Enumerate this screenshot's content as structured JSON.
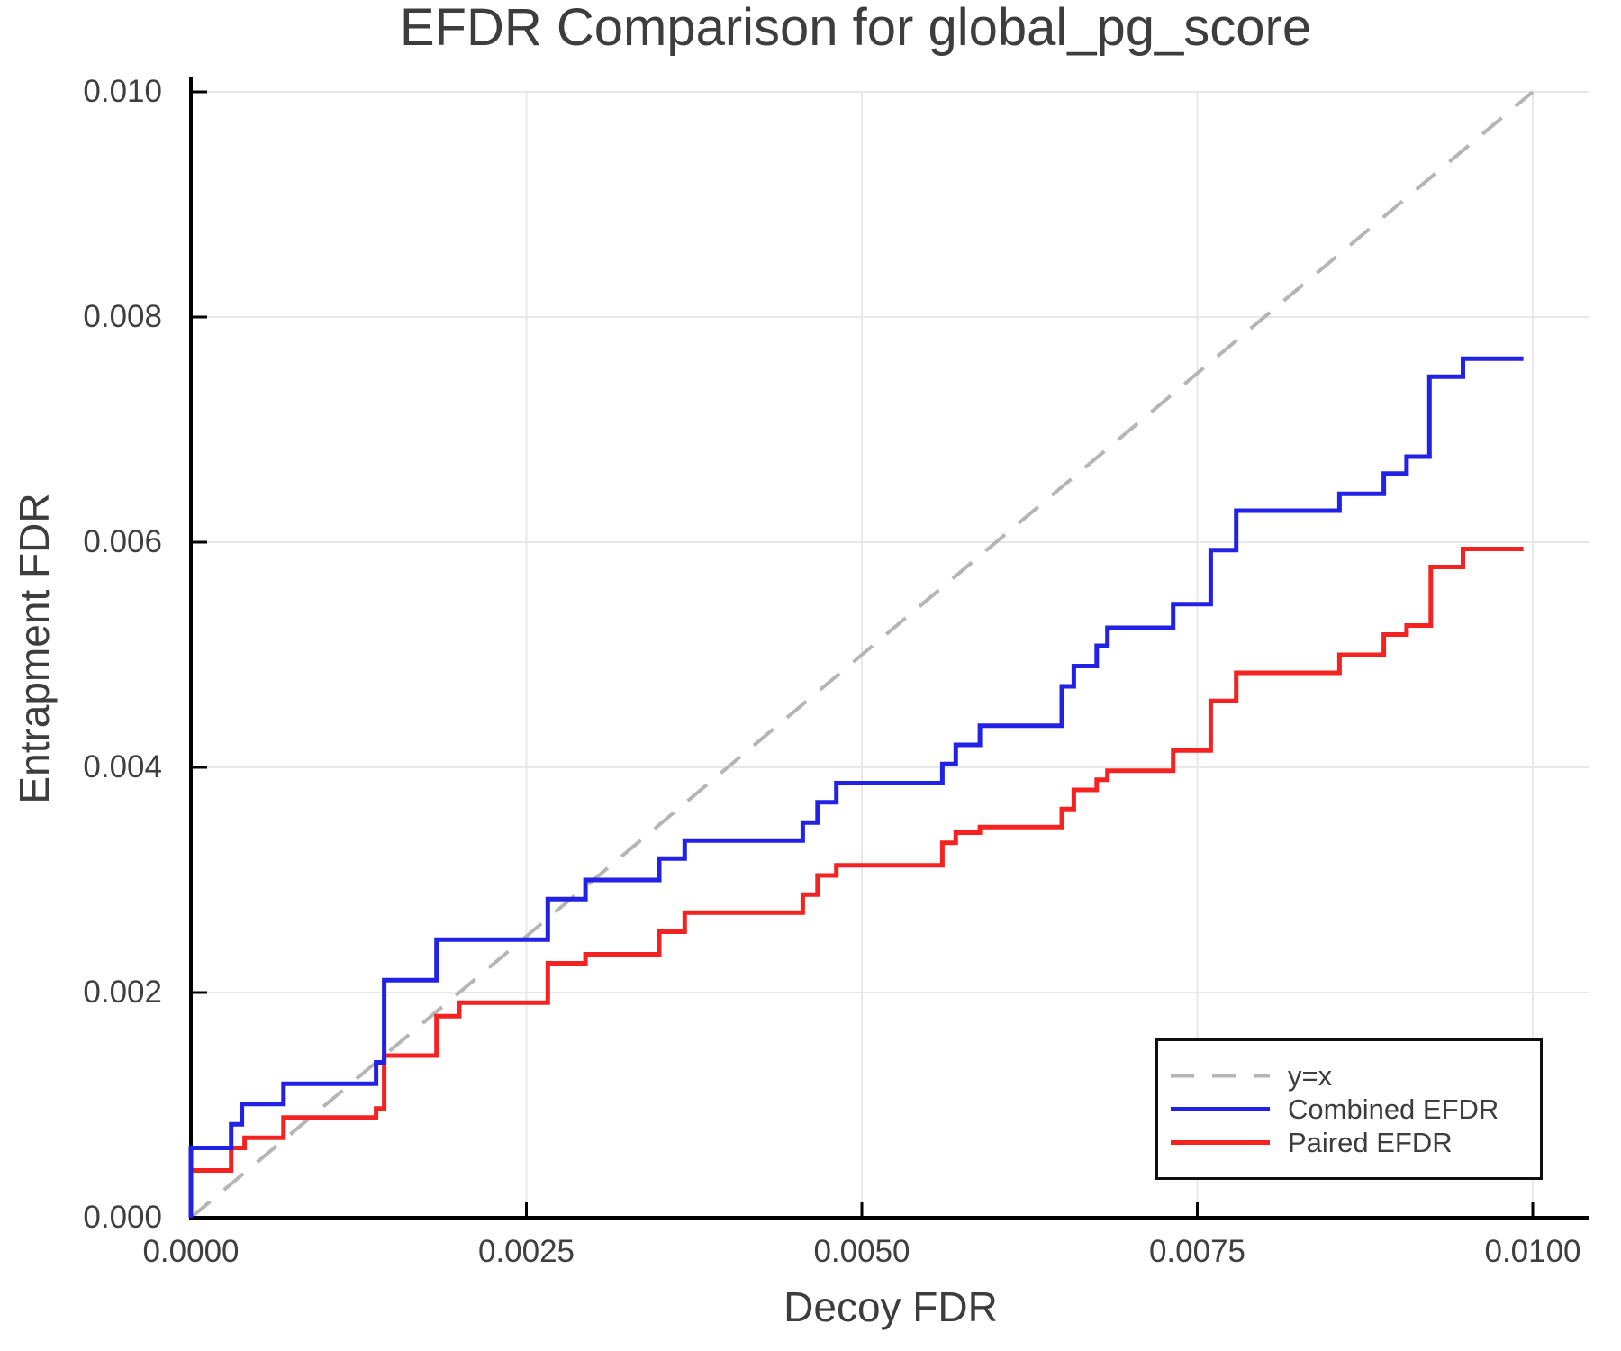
{
  "chart_data": {
    "type": "line",
    "subtype": "step-post",
    "title": "EFDR Comparison for global_pg_score",
    "xlabel": "Decoy FDR",
    "ylabel": "Entrapment FDR",
    "xlim": [
      0.0,
      0.0104
    ],
    "ylim": [
      0.0,
      0.0101
    ],
    "grid": true,
    "legend_position": "lower right",
    "x_ticks": {
      "values": [
        0.0,
        0.0025,
        0.005,
        0.0075,
        0.01
      ],
      "labels": [
        "0.0000",
        "0.0025",
        "0.0050",
        "0.0075",
        "0.0100"
      ]
    },
    "y_ticks": {
      "values": [
        0.0,
        0.002,
        0.004,
        0.006,
        0.008,
        0.01
      ],
      "labels": [
        "0.000",
        "0.002",
        "0.004",
        "0.006",
        "0.008",
        "0.010"
      ]
    },
    "reference_line": {
      "label": "y=x",
      "from": [
        0.0,
        0.0
      ],
      "to": [
        0.01,
        0.01
      ],
      "color": "#b5b5b5",
      "style": "dashed"
    },
    "series": [
      {
        "name": "Combined EFDR",
        "color": "#2222e6",
        "step": "post",
        "x_end": 0.00993,
        "points": [
          [
            0.0,
            0.00062
          ],
          [
            0.0003,
            0.00083
          ],
          [
            0.00038,
            0.00101
          ],
          [
            0.00069,
            0.00119
          ],
          [
            0.00138,
            0.00138
          ],
          [
            0.00144,
            0.00211
          ],
          [
            0.00183,
            0.00247
          ],
          [
            0.00266,
            0.00283
          ],
          [
            0.00294,
            0.003
          ],
          [
            0.00349,
            0.00319
          ],
          [
            0.00368,
            0.00335
          ],
          [
            0.00456,
            0.00351
          ],
          [
            0.00467,
            0.00369
          ],
          [
            0.00481,
            0.00386
          ],
          [
            0.0056,
            0.00403
          ],
          [
            0.0057,
            0.0042
          ],
          [
            0.00588,
            0.00437
          ],
          [
            0.00649,
            0.00472
          ],
          [
            0.00658,
            0.0049
          ],
          [
            0.00675,
            0.00508
          ],
          [
            0.00683,
            0.00524
          ],
          [
            0.00732,
            0.00545
          ],
          [
            0.0076,
            0.00593
          ],
          [
            0.00779,
            0.00628
          ],
          [
            0.00856,
            0.00643
          ],
          [
            0.00889,
            0.00661
          ],
          [
            0.00906,
            0.00676
          ],
          [
            0.00923,
            0.00747
          ],
          [
            0.00948,
            0.00763
          ]
        ]
      },
      {
        "name": "Paired EFDR",
        "color": "#f52222",
        "step": "post",
        "x_end": 0.00993,
        "points": [
          [
            0.0,
            0.00042
          ],
          [
            0.0003,
            0.00062
          ],
          [
            0.0004,
            0.00071
          ],
          [
            0.00069,
            0.00089
          ],
          [
            0.00138,
            0.00097
          ],
          [
            0.00144,
            0.00144
          ],
          [
            0.00183,
            0.00179
          ],
          [
            0.002,
            0.00191
          ],
          [
            0.00266,
            0.00226
          ],
          [
            0.00294,
            0.00234
          ],
          [
            0.00349,
            0.00254
          ],
          [
            0.00368,
            0.00271
          ],
          [
            0.00456,
            0.00287
          ],
          [
            0.00467,
            0.00304
          ],
          [
            0.00481,
            0.00313
          ],
          [
            0.0056,
            0.00333
          ],
          [
            0.0057,
            0.00342
          ],
          [
            0.00588,
            0.00347
          ],
          [
            0.00649,
            0.00363
          ],
          [
            0.00658,
            0.0038
          ],
          [
            0.00675,
            0.00389
          ],
          [
            0.00683,
            0.00397
          ],
          [
            0.00732,
            0.00415
          ],
          [
            0.0076,
            0.00459
          ],
          [
            0.00779,
            0.00484
          ],
          [
            0.00856,
            0.005
          ],
          [
            0.00889,
            0.00518
          ],
          [
            0.00906,
            0.00526
          ],
          [
            0.00924,
            0.00578
          ],
          [
            0.00948,
            0.00594
          ]
        ]
      }
    ],
    "legend": [
      {
        "label": "y=x",
        "color": "#b5b5b5",
        "dashed": true
      },
      {
        "label": "Combined EFDR",
        "color": "#2222e6",
        "dashed": false
      },
      {
        "label": "Paired EFDR",
        "color": "#f52222",
        "dashed": false
      }
    ],
    "colors": {
      "grid": "#e8e8e8",
      "spine": "#000000",
      "text": "#3d3d3d",
      "tick_text": "#3f3f3f"
    }
  }
}
